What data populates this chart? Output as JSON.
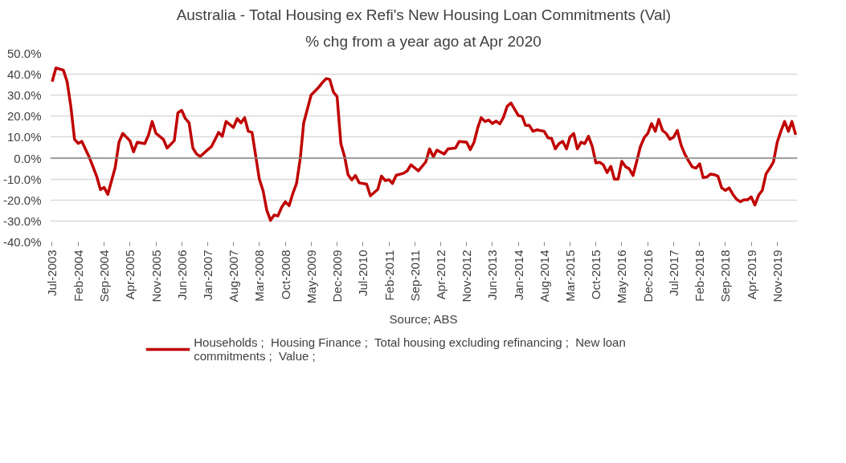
{
  "chart_data": {
    "type": "line",
    "title": "Australia - Total Housing ex Refi's New Housing Loan Commitments (Val)",
    "subtitle": "% chg from a year ago at Apr 2020",
    "annotations": [
      "Source; ABS"
    ],
    "x": [
      "2003-07",
      "2003-08",
      "2003-10",
      "2003-11",
      "2003-12",
      "2004-01",
      "2004-02",
      "2004-03",
      "2004-05",
      "2004-07",
      "2004-08",
      "2004-09",
      "2004-10",
      "2004-12",
      "2005-01",
      "2005-02",
      "2005-04",
      "2005-05",
      "2005-06",
      "2005-08",
      "2005-09",
      "2005-10",
      "2005-11",
      "2006-01",
      "2006-02",
      "2006-04",
      "2006-05",
      "2006-06",
      "2006-07",
      "2006-08",
      "2006-09",
      "2006-10",
      "2006-11",
      "2007-01",
      "2007-02",
      "2007-04",
      "2007-05",
      "2007-06",
      "2007-08",
      "2007-09",
      "2007-10",
      "2007-11",
      "2007-12",
      "2008-01",
      "2008-03",
      "2008-04",
      "2008-05",
      "2008-06",
      "2008-07",
      "2008-08",
      "2008-09",
      "2008-10",
      "2008-11",
      "2008-12",
      "2009-01",
      "2009-02",
      "2009-03",
      "2009-05",
      "2009-07",
      "2009-08",
      "2009-09",
      "2009-10",
      "2009-11",
      "2009-12",
      "2010-01",
      "2010-02",
      "2010-03",
      "2010-04",
      "2010-05",
      "2010-06",
      "2010-08",
      "2010-09",
      "2010-11",
      "2010-12",
      "2011-01",
      "2011-02",
      "2011-03",
      "2011-04",
      "2011-06",
      "2011-07",
      "2011-08",
      "2011-10",
      "2011-12",
      "2012-01",
      "2012-02",
      "2012-03",
      "2012-05",
      "2012-06",
      "2012-08",
      "2012-09",
      "2012-11",
      "2012-12",
      "2013-01",
      "2013-02",
      "2013-03",
      "2013-04",
      "2013-05",
      "2013-06",
      "2013-07",
      "2013-08",
      "2013-09",
      "2013-10",
      "2013-11",
      "2014-01",
      "2014-02",
      "2014-03",
      "2014-04",
      "2014-05",
      "2014-06",
      "2014-08",
      "2014-09",
      "2014-10",
      "2014-11",
      "2014-12",
      "2015-01",
      "2015-02",
      "2015-03",
      "2015-04",
      "2015-05",
      "2015-06",
      "2015-07",
      "2015-08",
      "2015-09",
      "2015-10",
      "2015-11",
      "2015-12",
      "2016-01",
      "2016-02",
      "2016-03",
      "2016-04",
      "2016-05",
      "2016-06",
      "2016-07",
      "2016-08",
      "2016-09",
      "2016-10",
      "2016-11",
      "2016-12",
      "2017-01",
      "2017-02",
      "2017-03",
      "2017-04",
      "2017-05",
      "2017-06",
      "2017-07",
      "2017-08",
      "2017-09",
      "2017-10",
      "2017-11",
      "2017-12",
      "2018-01",
      "2018-02",
      "2018-03",
      "2018-04",
      "2018-05",
      "2018-06",
      "2018-07",
      "2018-08",
      "2018-09",
      "2018-10",
      "2018-11",
      "2018-12",
      "2019-01",
      "2019-02",
      "2019-03",
      "2019-04",
      "2019-05",
      "2019-06",
      "2019-07",
      "2019-08",
      "2019-09",
      "2019-10",
      "2019-11",
      "2019-12",
      "2020-01",
      "2020-02",
      "2020-03",
      "2020-04"
    ],
    "series": [
      {
        "name": "Households ;  Housing Finance ;  Total housing excluding refinancing ;  New loan commitments ;  Value ;",
        "color": "#c00000",
        "values": [
          36.5,
          43,
          42,
          36.5,
          25,
          9,
          7,
          8,
          0.5,
          -8.6,
          -15,
          -14,
          -17.3,
          -4.4,
          7.6,
          11.8,
          8.3,
          3,
          7.6,
          6.9,
          11,
          17.5,
          11.8,
          9,
          4.8,
          8.3,
          21.7,
          22.8,
          18.9,
          16.8,
          4.8,
          2,
          0.8,
          4,
          5.5,
          12.3,
          10.4,
          17.5,
          14.6,
          18.9,
          16.8,
          19.3,
          12.8,
          12.3,
          -10,
          -15.6,
          -24.8,
          -29.7,
          -27.2,
          -27.6,
          -23.4,
          -20.8,
          -22.7,
          -17,
          -12.1,
          -0.1,
          16.8,
          30.1,
          33.7,
          36,
          37.9,
          37.6,
          31.5,
          29.4,
          6.9,
          0.6,
          -7.9,
          -10.4,
          -8.3,
          -11.8,
          -12.4,
          -18,
          -14.9,
          -8.6,
          -10.7,
          -10.3,
          -12.1,
          -8.2,
          -7.2,
          -6.1,
          -3.2,
          -6.1,
          -1.8,
          4.4,
          0.6,
          3.8,
          2,
          4.4,
          4.8,
          8,
          7.6,
          4.1,
          7.6,
          14.6,
          19.3,
          17.5,
          18.2,
          16.5,
          17.7,
          16.3,
          19.6,
          24.8,
          26.3,
          20.3,
          19.9,
          15.6,
          15.6,
          12.8,
          13.5,
          12.8,
          9.7,
          9.4,
          4.4,
          6.9,
          8,
          4.4,
          10,
          11.8,
          4.4,
          7.6,
          6.9,
          10.4,
          5.5,
          -2.3,
          -2,
          -3.2,
          -6.9,
          -3.9,
          -10,
          -10,
          -1.5,
          -4.1,
          -5.1,
          -8.3,
          -1.5,
          5.5,
          9.7,
          11.8,
          16.5,
          12.8,
          18.5,
          13.2,
          11.8,
          9,
          10,
          13.2,
          6.2,
          2,
          -1.3,
          -4.1,
          -4.8,
          -2.7,
          -9.3,
          -9,
          -7.6,
          -7.9,
          -8.6,
          -14.2,
          -15.4,
          -14.2,
          -17.3,
          -19.6,
          -20.8,
          -19.9,
          -19.9,
          -18.5,
          -22.4,
          -17.7,
          -15.4,
          -7.5,
          -4.8,
          -1.8,
          7.6,
          12.8,
          17.5,
          12.8,
          17.5,
          11.1
        ]
      }
    ],
    "xlim": [
      "2003-06-15",
      "2020-04-15"
    ],
    "xticks": [
      {
        "value": "2003-07",
        "label": "Jul-2003"
      },
      {
        "value": "2004-02",
        "label": "Feb-2004"
      },
      {
        "value": "2004-09",
        "label": "Sep-2004"
      },
      {
        "value": "2005-04",
        "label": "Apr-2005"
      },
      {
        "value": "2005-11",
        "label": "Nov-2005"
      },
      {
        "value": "2006-06",
        "label": "Jun-2006"
      },
      {
        "value": "2007-01",
        "label": "Jan-2007"
      },
      {
        "value": "2007-08",
        "label": "Aug-2007"
      },
      {
        "value": "2008-03",
        "label": "Mar-2008"
      },
      {
        "value": "2008-10",
        "label": "Oct-2008"
      },
      {
        "value": "2009-05",
        "label": "May-2009"
      },
      {
        "value": "2009-12",
        "label": "Dec-2009"
      },
      {
        "value": "2010-07",
        "label": "Jul-2010"
      },
      {
        "value": "2011-02",
        "label": "Feb-2011"
      },
      {
        "value": "2011-09",
        "label": "Sep-2011"
      },
      {
        "value": "2012-04",
        "label": "Apr-2012"
      },
      {
        "value": "2012-11",
        "label": "Nov-2012"
      },
      {
        "value": "2013-06",
        "label": "Jun-2013"
      },
      {
        "value": "2014-01",
        "label": "Jan-2014"
      },
      {
        "value": "2014-08",
        "label": "Aug-2014"
      },
      {
        "value": "2015-03",
        "label": "Mar-2015"
      },
      {
        "value": "2015-10",
        "label": "Oct-2015"
      },
      {
        "value": "2016-05",
        "label": "May-2016"
      },
      {
        "value": "2016-12",
        "label": "Dec-2016"
      },
      {
        "value": "2017-07",
        "label": "Jul-2017"
      },
      {
        "value": "2018-02",
        "label": "Feb-2018"
      },
      {
        "value": "2018-09",
        "label": "Sep-2018"
      },
      {
        "value": "2019-04",
        "label": "Apr-2019"
      },
      {
        "value": "2019-11",
        "label": "Nov-2019"
      }
    ],
    "ylim": [
      -40,
      50
    ],
    "yticks": [
      {
        "value": -40,
        "label": "-40.0%"
      },
      {
        "value": -30,
        "label": "-30.0%"
      },
      {
        "value": -20,
        "label": "-20.0%"
      },
      {
        "value": -10,
        "label": "-10.0%"
      },
      {
        "value": 0,
        "label": "0.0%"
      },
      {
        "value": 10,
        "label": "10.0%"
      },
      {
        "value": 20,
        "label": "20.0%"
      },
      {
        "value": 30,
        "label": "30.0%"
      },
      {
        "value": 40,
        "label": "40.0%"
      },
      {
        "value": 50,
        "label": "50.0%"
      }
    ],
    "grid": "y",
    "legend": "bottom",
    "line_style": "solid"
  }
}
